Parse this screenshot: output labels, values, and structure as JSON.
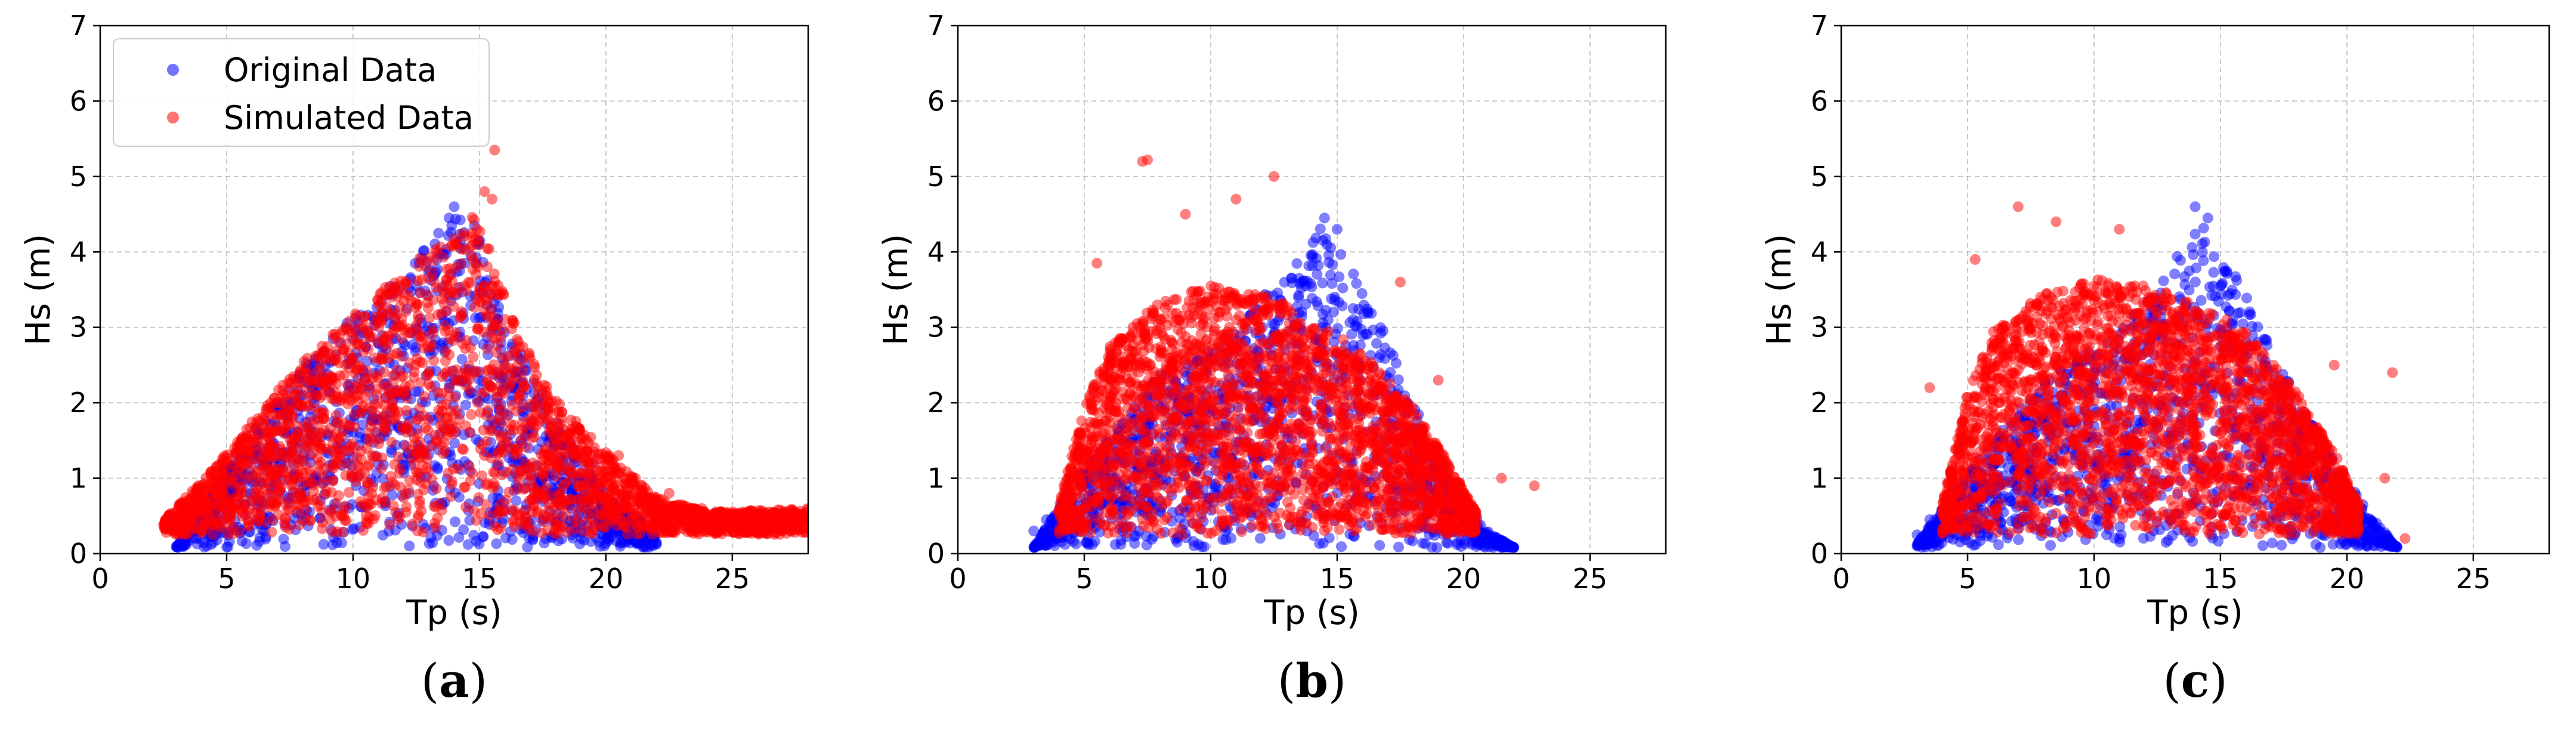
{
  "chart_data": [
    {
      "panel": "a",
      "type": "scatter",
      "xlabel": "Tp (s)",
      "ylabel": "Hs (m)",
      "xlim": [
        0,
        28
      ],
      "ylim": [
        0,
        7
      ],
      "xticks": [
        0,
        5,
        10,
        15,
        20,
        25
      ],
      "yticks": [
        0,
        1,
        2,
        3,
        4,
        5,
        6,
        7
      ],
      "grid": true,
      "legend": "top-left",
      "series": [
        {
          "name": "Original Data",
          "color": "#0000ff",
          "envelope": [
            [
              3,
              0.12
            ],
            [
              5,
              1.2
            ],
            [
              8,
              2.5
            ],
            [
              10,
              3.2
            ],
            [
              12,
              3.7
            ],
            [
              13.5,
              4.35
            ],
            [
              14.2,
              4.6
            ],
            [
              15,
              4.2
            ],
            [
              16,
              3.1
            ],
            [
              18,
              1.8
            ],
            [
              20,
              0.8
            ],
            [
              22,
              0.3
            ]
          ],
          "outliers": [
            [
              14.0,
              4.6
            ],
            [
              13.8,
              4.45
            ],
            [
              14.8,
              4.35
            ],
            [
              19.5,
              1.2
            ],
            [
              20.5,
              0.45
            ],
            [
              21.5,
              0.25
            ],
            [
              22,
              0.15
            ]
          ]
        },
        {
          "name": "Simulated Data",
          "color": "#ff0000",
          "envelope": [
            [
              2.5,
              0.3
            ],
            [
              4,
              0.8
            ],
            [
              6,
              1.6
            ],
            [
              8,
              2.4
            ],
            [
              10,
              3.0
            ],
            [
              12,
              3.6
            ],
            [
              13.5,
              4.0
            ],
            [
              15,
              4.5
            ],
            [
              15.5,
              3.7
            ],
            [
              16.5,
              2.8
            ],
            [
              18,
              1.9
            ],
            [
              20,
              1.2
            ],
            [
              22,
              0.6
            ],
            [
              24,
              0.4
            ],
            [
              28,
              0.45
            ]
          ],
          "outliers": [
            [
              15.6,
              5.35
            ],
            [
              15.2,
              4.8
            ],
            [
              15.5,
              4.7
            ],
            [
              20.5,
              1.3
            ],
            [
              21,
              1.0
            ],
            [
              22.5,
              0.8
            ],
            [
              23.8,
              0.6
            ],
            [
              24.0,
              0.38
            ],
            [
              27.9,
              0.45
            ]
          ]
        }
      ]
    },
    {
      "panel": "b",
      "type": "scatter",
      "xlabel": "Tp (s)",
      "ylabel": "Hs (m)",
      "xlim": [
        0,
        28
      ],
      "ylim": [
        0,
        7
      ],
      "xticks": [
        0,
        5,
        10,
        15,
        20,
        25
      ],
      "yticks": [
        0,
        1,
        2,
        3,
        4,
        5,
        6,
        7
      ],
      "grid": true,
      "series": [
        {
          "name": "Original Data",
          "color": "#0000ff",
          "envelope": [
            [
              3,
              0.1
            ],
            [
              5,
              1.2
            ],
            [
              8,
              2.4
            ],
            [
              11,
              3.0
            ],
            [
              13,
              3.8
            ],
            [
              14.5,
              4.4
            ],
            [
              16,
              3.6
            ],
            [
              17.5,
              2.5
            ],
            [
              19,
              1.2
            ],
            [
              21,
              0.3
            ],
            [
              22,
              0.1
            ]
          ],
          "outliers": [
            [
              14.5,
              4.45
            ],
            [
              15.0,
              4.3
            ],
            [
              3.0,
              0.3
            ],
            [
              3.5,
              0.45
            ],
            [
              21.5,
              0.12
            ]
          ]
        },
        {
          "name": "Simulated Data",
          "color": "#ff0000",
          "envelope": [
            [
              4,
              0.5
            ],
            [
              5,
              1.8
            ],
            [
              6,
              2.6
            ],
            [
              8,
              3.2
            ],
            [
              10,
              3.4
            ],
            [
              12,
              3.3
            ],
            [
              14,
              3.0
            ],
            [
              16,
              2.5
            ],
            [
              18,
              1.8
            ],
            [
              19.5,
              1.0
            ],
            [
              20.5,
              0.4
            ]
          ],
          "outliers": [
            [
              7.3,
              5.2
            ],
            [
              7.5,
              5.22
            ],
            [
              12.5,
              5.0
            ],
            [
              11,
              4.7
            ],
            [
              9,
              4.5
            ],
            [
              5.5,
              3.85
            ],
            [
              17.5,
              3.6
            ],
            [
              19,
              2.3
            ],
            [
              21.5,
              1.0
            ],
            [
              22.8,
              0.9
            ]
          ]
        }
      ]
    },
    {
      "panel": "c",
      "type": "scatter",
      "xlabel": "Tp (s)",
      "ylabel": "Hs (m)",
      "xlim": [
        0,
        28
      ],
      "ylim": [
        0,
        7
      ],
      "xticks": [
        0,
        5,
        10,
        15,
        20,
        25
      ],
      "yticks": [
        0,
        1,
        2,
        3,
        4,
        5,
        6,
        7
      ],
      "grid": true,
      "series": [
        {
          "name": "Original Data",
          "color": "#0000ff",
          "envelope": [
            [
              3,
              0.15
            ],
            [
              5,
              1.1
            ],
            [
              8,
              2.3
            ],
            [
              11,
              3.0
            ],
            [
              13,
              3.8
            ],
            [
              14,
              4.5
            ],
            [
              15.5,
              3.8
            ],
            [
              17,
              2.8
            ],
            [
              19,
              1.5
            ],
            [
              21,
              0.5
            ],
            [
              22,
              0.1
            ]
          ],
          "outliers": [
            [
              14.0,
              4.6
            ],
            [
              14.5,
              4.45
            ],
            [
              3.0,
              0.25
            ],
            [
              3.5,
              0.45
            ],
            [
              21.8,
              0.1
            ]
          ]
        },
        {
          "name": "Simulated Data",
          "color": "#ff0000",
          "envelope": [
            [
              4,
              0.5
            ],
            [
              5,
              2.0
            ],
            [
              6,
              2.8
            ],
            [
              8,
              3.3
            ],
            [
              10,
              3.5
            ],
            [
              12,
              3.4
            ],
            [
              14,
              3.2
            ],
            [
              16,
              2.8
            ],
            [
              18,
              2.0
            ],
            [
              19.5,
              1.2
            ],
            [
              20.5,
              0.5
            ]
          ],
          "outliers": [
            [
              7.0,
              4.6
            ],
            [
              8.5,
              4.4
            ],
            [
              11.0,
              4.3
            ],
            [
              5.3,
              3.9
            ],
            [
              3.5,
              2.2
            ],
            [
              19.5,
              2.5
            ],
            [
              21.8,
              2.4
            ],
            [
              21.5,
              1.0
            ],
            [
              22.3,
              0.2
            ]
          ]
        }
      ]
    }
  ],
  "panels": [
    {
      "label_open": "(",
      "label_letter": "a",
      "label_close": ")"
    },
    {
      "label_open": "(",
      "label_letter": "b",
      "label_close": ")"
    },
    {
      "label_open": "(",
      "label_letter": "c",
      "label_close": ")"
    }
  ],
  "legend": {
    "original": "Original Data",
    "simulated": "Simulated Data"
  }
}
